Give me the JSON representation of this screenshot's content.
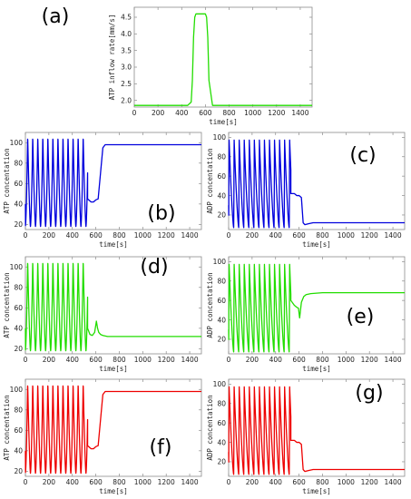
{
  "chart_data": [
    {
      "id": "a",
      "type": "line",
      "panel_label": "(a)",
      "xlabel": "time[s]",
      "ylabel": "ATP inflow rate[mm/s]",
      "xlim": [
        0,
        1500
      ],
      "ylim": [
        1.8,
        4.8
      ],
      "xticks": [
        0,
        200,
        400,
        600,
        800,
        1000,
        1200,
        1400
      ],
      "yticks": [
        2.0,
        2.5,
        3.0,
        3.5,
        4.0,
        4.5
      ],
      "ytick_labels": [
        "2.0",
        "2.5",
        "3.0",
        "3.5",
        "4.0",
        "4.5"
      ],
      "series": [
        {
          "color": "#22dd00",
          "x": [
            0,
            450,
            480,
            490,
            500,
            510,
            520,
            600,
            610,
            620,
            630,
            660,
            1500
          ],
          "y": [
            1.85,
            1.85,
            1.95,
            2.6,
            3.9,
            4.5,
            4.6,
            4.6,
            4.5,
            3.9,
            2.6,
            1.85,
            1.85
          ]
        }
      ],
      "grid": false
    },
    {
      "id": "b",
      "type": "line",
      "panel_label": "(b)",
      "xlabel": "time[s]",
      "ylabel": "ATP concentation",
      "xlim": [
        0,
        1500
      ],
      "ylim": [
        15,
        110
      ],
      "xticks": [
        0,
        200,
        400,
        600,
        800,
        1000,
        1200,
        1400
      ],
      "yticks": [
        20,
        40,
        60,
        80,
        100
      ],
      "ytick_labels": [
        "20",
        "40",
        "60",
        "80",
        "100"
      ],
      "series": [
        {
          "color": "#0000dd",
          "oscillation": {
            "start": 0,
            "end": 530,
            "period": 43,
            "min": 18,
            "max": 106,
            "peak_phase": 0.45,
            "initial": 40
          },
          "x": [
            530,
            560,
            580,
            600,
            620,
            640,
            660,
            680,
            700,
            1500
          ],
          "y": [
            45,
            42,
            42,
            44,
            45,
            70,
            95,
            98,
            98,
            98
          ]
        }
      ]
    },
    {
      "id": "c",
      "type": "line",
      "panel_label": "(c)",
      "xlabel": "time[s]",
      "ylabel": "ADP concentation",
      "xlim": [
        0,
        1500
      ],
      "ylim": [
        5,
        105
      ],
      "xticks": [
        0,
        200,
        400,
        600,
        800,
        1000,
        1200,
        1400
      ],
      "yticks": [
        20,
        40,
        60,
        80,
        100
      ],
      "ytick_labels": [
        "20",
        "40",
        "60",
        "80",
        "100"
      ],
      "series": [
        {
          "color": "#0000dd",
          "oscillation": {
            "start": 0,
            "end": 530,
            "period": 43,
            "min": 7,
            "max": 99,
            "peak_phase": 0.08,
            "initial": 30
          },
          "x": [
            530,
            560,
            580,
            600,
            620,
            635,
            650,
            680,
            720,
            1500
          ],
          "y": [
            42,
            42,
            40,
            40,
            38,
            12,
            10,
            11,
            12,
            12
          ]
        }
      ]
    },
    {
      "id": "d",
      "type": "line",
      "panel_label": "(d)",
      "xlabel": "time[s]",
      "ylabel": "ATP concentation",
      "xlim": [
        0,
        1500
      ],
      "ylim": [
        15,
        110
      ],
      "xticks": [
        0,
        200,
        400,
        600,
        800,
        1000,
        1200,
        1400
      ],
      "yticks": [
        20,
        40,
        60,
        80,
        100
      ],
      "ytick_labels": [
        "20",
        "40",
        "60",
        "80",
        "100"
      ],
      "series": [
        {
          "color": "#22dd00",
          "oscillation": {
            "start": 0,
            "end": 530,
            "period": 43,
            "min": 18,
            "max": 106,
            "peak_phase": 0.45,
            "initial": 40
          },
          "x": [
            530,
            550,
            570,
            590,
            605,
            615,
            625,
            640,
            660,
            700,
            800,
            1500
          ],
          "y": [
            40,
            34,
            33,
            36,
            47,
            40,
            36,
            34,
            33,
            32,
            32,
            32
          ]
        }
      ]
    },
    {
      "id": "e",
      "type": "line",
      "panel_label": "(e)",
      "xlabel": "time[s]",
      "ylabel": "ADP concentation",
      "xlim": [
        0,
        1500
      ],
      "ylim": [
        5,
        105
      ],
      "xticks": [
        0,
        200,
        400,
        600,
        800,
        1000,
        1200,
        1400
      ],
      "yticks": [
        20,
        40,
        60,
        80,
        100
      ],
      "ytick_labels": [
        "20",
        "40",
        "60",
        "80",
        "100"
      ],
      "series": [
        {
          "color": "#22dd00",
          "oscillation": {
            "start": 0,
            "end": 530,
            "period": 43,
            "min": 7,
            "max": 99,
            "peak_phase": 0.08,
            "initial": 30
          },
          "x": [
            530,
            560,
            580,
            595,
            605,
            620,
            640,
            660,
            700,
            800,
            1500
          ],
          "y": [
            60,
            55,
            53,
            52,
            42,
            58,
            64,
            66,
            67,
            68,
            68
          ]
        }
      ]
    },
    {
      "id": "f",
      "type": "line",
      "panel_label": "(f)",
      "xlabel": "time[s]",
      "ylabel": "ATP concentation",
      "xlim": [
        0,
        1500
      ],
      "ylim": [
        15,
        110
      ],
      "xticks": [
        0,
        200,
        400,
        600,
        800,
        1000,
        1200,
        1400
      ],
      "yticks": [
        20,
        40,
        60,
        80,
        100
      ],
      "ytick_labels": [
        "20",
        "40",
        "60",
        "80",
        "100"
      ],
      "series": [
        {
          "color": "#ee0000",
          "oscillation": {
            "start": 0,
            "end": 530,
            "period": 43,
            "min": 18,
            "max": 106,
            "peak_phase": 0.45,
            "initial": 40
          },
          "x": [
            530,
            560,
            580,
            600,
            620,
            640,
            660,
            680,
            700,
            1500
          ],
          "y": [
            45,
            42,
            42,
            44,
            45,
            70,
            95,
            98,
            98,
            98
          ]
        }
      ]
    },
    {
      "id": "g",
      "type": "line",
      "panel_label": "(g)",
      "xlabel": "time[s]",
      "ylabel": "ADP concentation",
      "xlim": [
        0,
        1500
      ],
      "ylim": [
        5,
        105
      ],
      "xticks": [
        0,
        200,
        400,
        600,
        800,
        1000,
        1200,
        1400
      ],
      "yticks": [
        20,
        40,
        60,
        80,
        100
      ],
      "ytick_labels": [
        "20",
        "40",
        "60",
        "80",
        "100"
      ],
      "series": [
        {
          "color": "#ee0000",
          "oscillation": {
            "start": 0,
            "end": 530,
            "period": 43,
            "min": 7,
            "max": 99,
            "peak_phase": 0.08,
            "initial": 30
          },
          "x": [
            530,
            560,
            580,
            600,
            620,
            635,
            650,
            680,
            720,
            1500
          ],
          "y": [
            42,
            42,
            40,
            40,
            38,
            12,
            10,
            11,
            12,
            12
          ]
        }
      ]
    }
  ]
}
